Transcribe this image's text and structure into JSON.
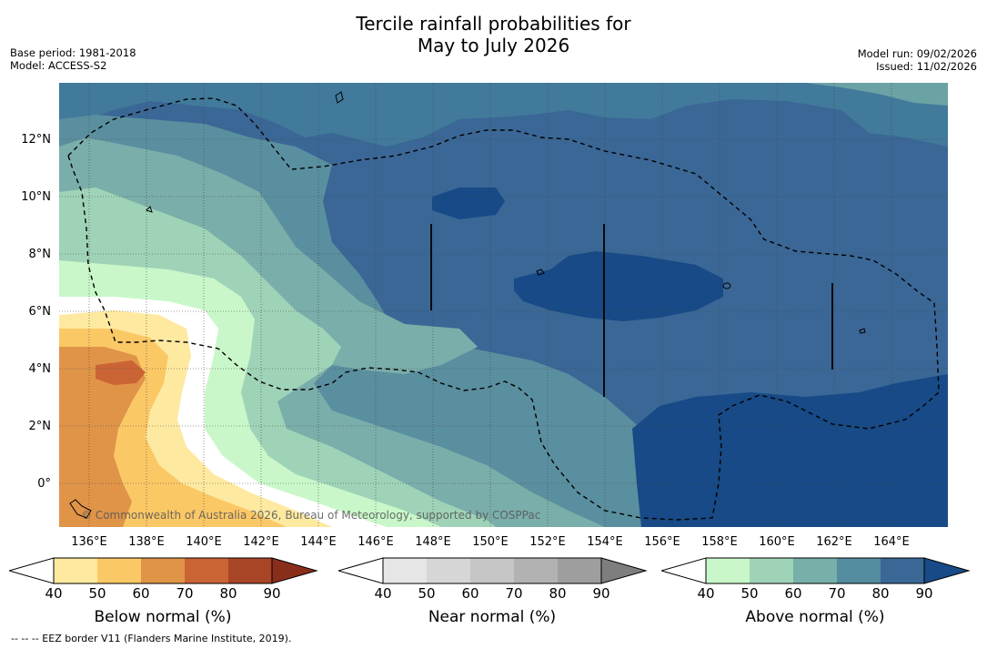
{
  "title": {
    "line1": "Tercile rainfall probabilities for",
    "line2": "May to July 2026"
  },
  "meta": {
    "base_period": "Base period: 1981-2018",
    "model": "Model: ACCESS-S2",
    "model_run": "Model run: 09/02/2026",
    "issued": "Issued: 11/02/2026"
  },
  "map": {
    "lat_labels": [
      "12°N",
      "10°N",
      "8°N",
      "6°N",
      "4°N",
      "2°N",
      "0°"
    ],
    "lon_labels": [
      "136°E",
      "138°E",
      "140°E",
      "142°E",
      "144°E",
      "146°E",
      "148°E",
      "150°E",
      "152°E",
      "154°E",
      "156°E",
      "158°E",
      "160°E",
      "162°E",
      "164°E"
    ],
    "copyright": "© Commonwealth of Australia 2026, Bureau of Meteorology, supported by COSPPac",
    "layer_icons": [
      "eez-border-dashed-icon",
      "coastline-icon"
    ]
  },
  "colorbars": {
    "below": {
      "title": "Below normal (%)",
      "ticks": [
        "40",
        "50",
        "60",
        "70",
        "80",
        "90"
      ],
      "colors": [
        "#ffffff",
        "#fee9a0",
        "#fbc866",
        "#e09448",
        "#cb6435",
        "#a94527",
        "#8a2e1c"
      ]
    },
    "near": {
      "title": "Near normal (%)",
      "ticks": [
        "40",
        "50",
        "60",
        "70",
        "80",
        "90"
      ],
      "colors": [
        "#ffffff",
        "#e6e6e6",
        "#d6d6d6",
        "#c6c6c6",
        "#b2b2b2",
        "#9e9e9e",
        "#7e7e7e"
      ]
    },
    "above": {
      "title": "Above normal (%)",
      "ticks": [
        "40",
        "50",
        "60",
        "70",
        "80",
        "90"
      ],
      "colors": [
        "#ffffff",
        "#c9f7c9",
        "#9fd3b7",
        "#77b0a8",
        "#548d9f",
        "#3a6796",
        "#174a86"
      ]
    }
  },
  "footer": {
    "legend": "--  --  -- EEZ border V11 (Flanders Marine Institute, 2019)."
  }
}
